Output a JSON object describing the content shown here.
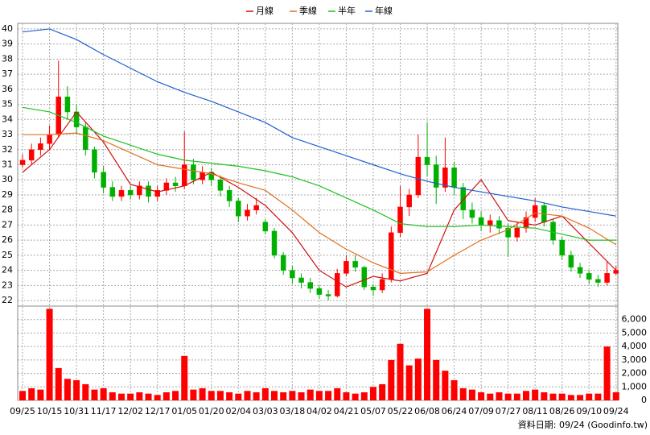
{
  "chart_data": [
    {
      "type": "candlestick",
      "categories": [
        "09/25",
        null,
        null,
        "10/15",
        null,
        null,
        "10/31",
        null,
        null,
        "11/17",
        null,
        null,
        "12/02",
        null,
        null,
        "12/17",
        null,
        null,
        "01/05",
        null,
        null,
        "01/20",
        null,
        null,
        "02/04",
        null,
        null,
        "03/03",
        null,
        null,
        "03/18",
        null,
        null,
        "04/02",
        null,
        null,
        "04/21",
        null,
        null,
        "05/07",
        null,
        null,
        "05/22",
        null,
        null,
        "06/08",
        null,
        null,
        "06/24",
        null,
        null,
        "07/09",
        null,
        null,
        "07/27",
        null,
        null,
        "08/11",
        null,
        null,
        "08/26",
        null,
        null,
        "09/10",
        null,
        null,
        "09/24"
      ],
      "open": [
        31.0,
        31.3,
        32.0,
        32.4,
        33.0,
        35.5,
        34.5,
        33.5,
        32.0,
        30.5,
        29.5,
        28.9,
        29.3,
        29.0,
        29.6,
        28.9,
        29.3,
        29.8,
        29.6,
        31.0,
        30.0,
        30.5,
        30.0,
        29.3,
        28.6,
        27.6,
        28.0,
        27.2,
        26.6,
        25.0,
        24.0,
        23.5,
        23.2,
        22.8,
        22.4,
        22.3,
        23.8,
        24.6,
        24.2,
        22.9,
        22.7,
        23.4,
        26.5,
        28.2,
        29.0,
        31.5,
        31.0,
        29.5,
        30.8,
        29.5,
        28.0,
        27.5,
        27.0,
        27.3,
        26.8,
        26.2,
        26.8,
        27.5,
        28.3,
        27.2,
        26.0,
        25.0,
        24.2,
        23.8,
        23.4,
        23.2,
        23.8
      ],
      "high": [
        31.7,
        32.4,
        32.8,
        33.6,
        37.9,
        36.2,
        35.0,
        33.8,
        32.2,
        30.9,
        29.9,
        29.6,
        29.6,
        29.9,
        29.9,
        29.6,
        30.1,
        30.2,
        33.2,
        31.4,
        30.9,
        30.8,
        30.3,
        29.6,
        28.8,
        28.4,
        28.8,
        27.4,
        26.8,
        25.2,
        24.3,
        23.8,
        23.5,
        23.0,
        22.7,
        24.1,
        25.0,
        25.0,
        24.3,
        23.1,
        23.8,
        26.9,
        29.6,
        29.4,
        33.0,
        33.8,
        31.6,
        32.8,
        31.2,
        29.8,
        28.5,
        27.9,
        27.7,
        27.6,
        27.1,
        27.2,
        27.9,
        28.8,
        28.5,
        27.4,
        26.2,
        25.3,
        24.5,
        24.0,
        23.7,
        24.6,
        24.3
      ],
      "low": [
        30.8,
        31.0,
        31.6,
        32.0,
        32.8,
        34.0,
        33.0,
        31.6,
        30.1,
        29.1,
        28.6,
        28.6,
        28.7,
        28.7,
        28.5,
        28.6,
        29.0,
        29.2,
        29.4,
        29.7,
        29.7,
        29.6,
        28.9,
        28.2,
        27.2,
        27.3,
        27.7,
        26.4,
        24.8,
        23.7,
        23.1,
        22.8,
        22.5,
        22.1,
        22.0,
        22.2,
        23.6,
        23.9,
        22.7,
        22.3,
        22.5,
        23.2,
        26.2,
        27.6,
        28.8,
        30.2,
        28.4,
        29.2,
        29.0,
        27.4,
        27.1,
        26.6,
        26.5,
        26.4,
        24.9,
        25.9,
        26.5,
        27.2,
        26.9,
        25.7,
        24.7,
        23.9,
        23.5,
        23.1,
        22.9,
        23.0,
        23.7
      ],
      "close": [
        31.3,
        32.0,
        32.4,
        33.0,
        35.5,
        34.5,
        33.5,
        32.0,
        30.5,
        29.5,
        28.9,
        29.3,
        29.0,
        29.6,
        28.9,
        29.3,
        29.8,
        29.6,
        31.0,
        30.0,
        30.5,
        30.0,
        29.3,
        28.6,
        27.6,
        28.0,
        28.3,
        26.6,
        25.0,
        24.0,
        23.5,
        23.2,
        22.8,
        22.4,
        22.3,
        23.8,
        24.6,
        24.2,
        22.9,
        22.7,
        23.4,
        26.5,
        28.2,
        29.0,
        31.5,
        31.0,
        29.5,
        30.8,
        29.5,
        28.0,
        27.5,
        27.0,
        27.3,
        26.8,
        26.2,
        26.8,
        27.5,
        28.3,
        27.2,
        26.0,
        25.0,
        24.2,
        23.8,
        23.4,
        23.2,
        23.8,
        24.0
      ],
      "up_color": "#ff0000",
      "down_color": "#00b000",
      "series": [
        {
          "name": "月線",
          "color": "#d01010",
          "x": [
            0,
            3,
            6,
            9,
            12,
            15,
            18,
            21,
            24,
            27,
            30,
            33,
            36,
            39,
            42,
            45,
            48,
            51,
            54,
            57,
            60,
            63,
            66
          ],
          "values": [
            30.5,
            32.0,
            34.5,
            32.5,
            29.7,
            29.2,
            29.6,
            30.5,
            29.5,
            28.3,
            26.5,
            24.0,
            22.9,
            23.6,
            23.3,
            23.8,
            28.0,
            30.0,
            27.3,
            27.0,
            27.6,
            25.8,
            24.0
          ]
        },
        {
          "name": "季線",
          "color": "#e07020",
          "x": [
            0,
            3,
            6,
            9,
            12,
            15,
            18,
            21,
            24,
            27,
            30,
            33,
            36,
            39,
            42,
            45,
            48,
            51,
            54,
            57,
            60,
            63,
            66
          ],
          "values": [
            33.0,
            33.0,
            33.1,
            32.6,
            31.8,
            31.0,
            30.7,
            30.4,
            29.8,
            29.3,
            28.0,
            26.5,
            25.4,
            24.5,
            23.8,
            23.9,
            25.0,
            26.0,
            26.7,
            27.8,
            27.6,
            26.8,
            25.7
          ]
        },
        {
          "name": "半年",
          "color": "#20c020",
          "x": [
            0,
            3,
            6,
            9,
            12,
            15,
            18,
            21,
            24,
            27,
            30,
            33,
            36,
            39,
            42,
            45,
            48,
            51,
            54,
            57,
            60,
            63,
            66
          ],
          "values": [
            34.8,
            34.5,
            33.8,
            32.9,
            32.3,
            31.7,
            31.3,
            31.1,
            30.9,
            30.6,
            30.2,
            29.6,
            28.8,
            28.0,
            27.1,
            26.9,
            26.9,
            27.0,
            26.9,
            26.8,
            26.4,
            26.0,
            26.0
          ]
        },
        {
          "name": "年線",
          "color": "#2060d0",
          "x": [
            0,
            3,
            6,
            9,
            12,
            15,
            18,
            21,
            24,
            27,
            30,
            33,
            36,
            39,
            42,
            45,
            48,
            51,
            54,
            57,
            60,
            63,
            66
          ],
          "values": [
            39.8,
            40.0,
            39.3,
            38.3,
            37.4,
            36.5,
            35.8,
            35.2,
            34.5,
            33.8,
            32.8,
            32.2,
            31.6,
            31.0,
            30.4,
            29.9,
            29.5,
            29.2,
            28.9,
            28.6,
            28.2,
            27.9,
            27.6
          ]
        }
      ],
      "xlim": [
        -0.54,
        66.2
      ],
      "ylim": [
        21.63,
        40.37
      ],
      "yticks": [
        22,
        23,
        24,
        25,
        26,
        27,
        28,
        29,
        30,
        31,
        32,
        33,
        34,
        35,
        36,
        37,
        38,
        39,
        40
      ],
      "grid": true
    },
    {
      "type": "bar",
      "values": [
        700,
        900,
        800,
        6800,
        2400,
        1600,
        1500,
        1200,
        800,
        900,
        600,
        500,
        500,
        600,
        500,
        400,
        600,
        700,
        3300,
        800,
        900,
        700,
        700,
        600,
        500,
        700,
        600,
        900,
        700,
        600,
        700,
        600,
        800,
        700,
        700,
        900,
        600,
        500,
        600,
        1000,
        1200,
        3000,
        4200,
        2600,
        3100,
        6800,
        3000,
        2200,
        1500,
        900,
        800,
        600,
        500,
        600,
        500,
        500,
        700,
        800,
        600,
        500,
        500,
        400,
        400,
        500,
        500,
        4000,
        600
      ],
      "color": "#ff0000",
      "ylim": [
        0,
        7000
      ],
      "yticks": [
        0,
        {
          "value": 1000,
          "label": "1,000"
        },
        {
          "value": 2000,
          "label": "2,000"
        },
        {
          "value": 3000,
          "label": "3,000"
        },
        {
          "value": 4000,
          "label": "4,000"
        },
        {
          "value": 5000,
          "label": "5,000"
        },
        {
          "value": 6000,
          "label": "6,000"
        }
      ],
      "grid": true
    }
  ],
  "footer": "資料日期: 09/24 (Goodinfo.tw)"
}
